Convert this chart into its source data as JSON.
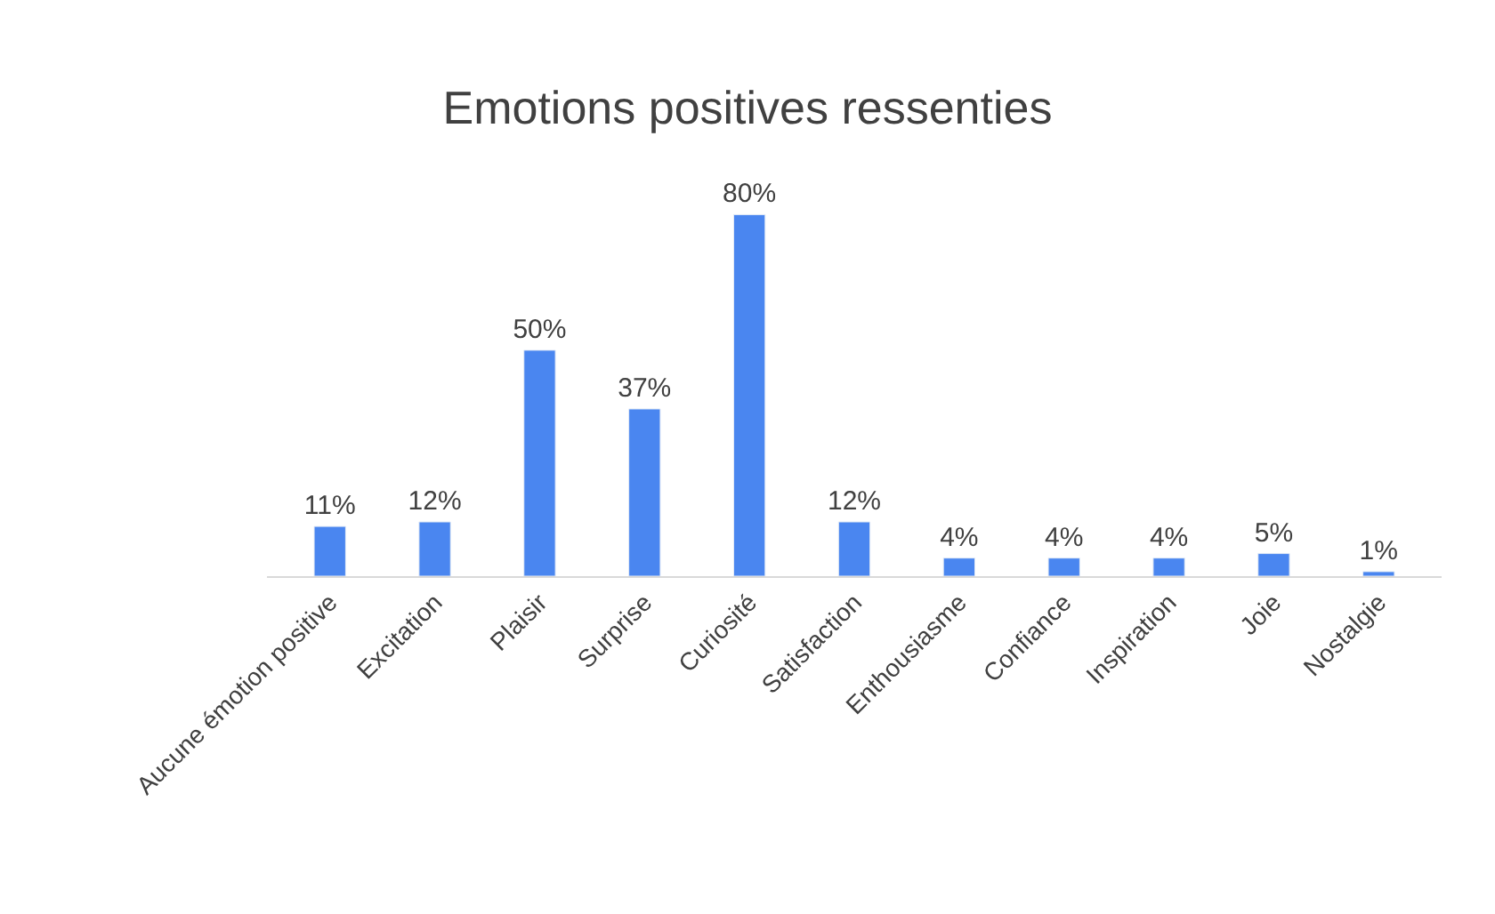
{
  "chart_data": {
    "type": "bar",
    "title": "Emotions positives ressenties",
    "categories": [
      "Aucune émotion positive",
      "Excitation",
      "Plaisir",
      "Surprise",
      "Curiosité",
      "Satisfaction",
      "Enthousiasme",
      "Confiance",
      "Inspiration",
      "Joie",
      "Nostalgie"
    ],
    "values": [
      11,
      12,
      50,
      37,
      80,
      12,
      4,
      4,
      4,
      5,
      1
    ],
    "value_labels": [
      "11%",
      "12%",
      "50%",
      "37%",
      "80%",
      "12%",
      "4%",
      "4%",
      "4%",
      "5%",
      "1%"
    ],
    "color": "#4a86f0"
  }
}
